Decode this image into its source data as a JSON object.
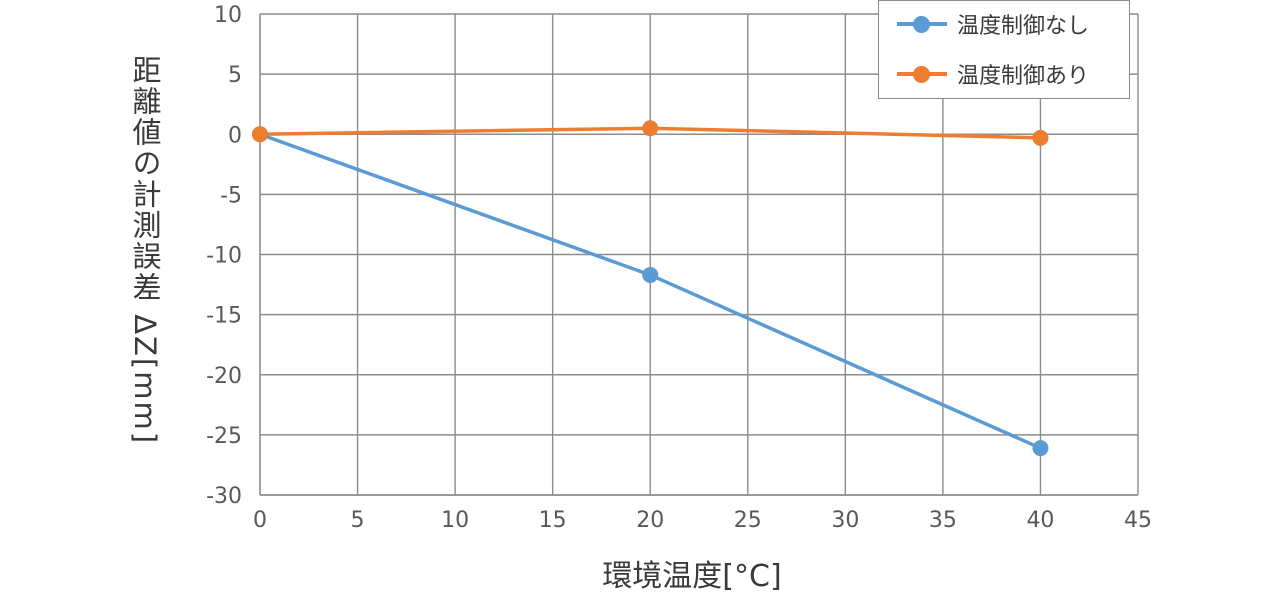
{
  "chart_data": {
    "type": "line",
    "title": "",
    "xlabel": "環境温度[°C]",
    "ylabel": "距離値の計測誤差 ΔZ[mm]",
    "xlim": [
      0,
      45
    ],
    "ylim": [
      -30,
      10
    ],
    "xticks": [
      0,
      5,
      10,
      15,
      20,
      25,
      30,
      35,
      40,
      45
    ],
    "yticks": [
      10,
      5,
      0,
      -5,
      -10,
      -15,
      -20,
      -25,
      -30
    ],
    "grid": true,
    "legend_position": "top-right",
    "series": [
      {
        "name": "温度制御なし",
        "color": "#5b9bd5",
        "x": [
          0,
          20,
          40
        ],
        "y": [
          0,
          -11.7,
          -26.1
        ]
      },
      {
        "name": "温度制御あり",
        "color": "#ed7d31",
        "x": [
          0,
          20,
          40
        ],
        "y": [
          0,
          0.5,
          -0.3
        ]
      }
    ]
  }
}
